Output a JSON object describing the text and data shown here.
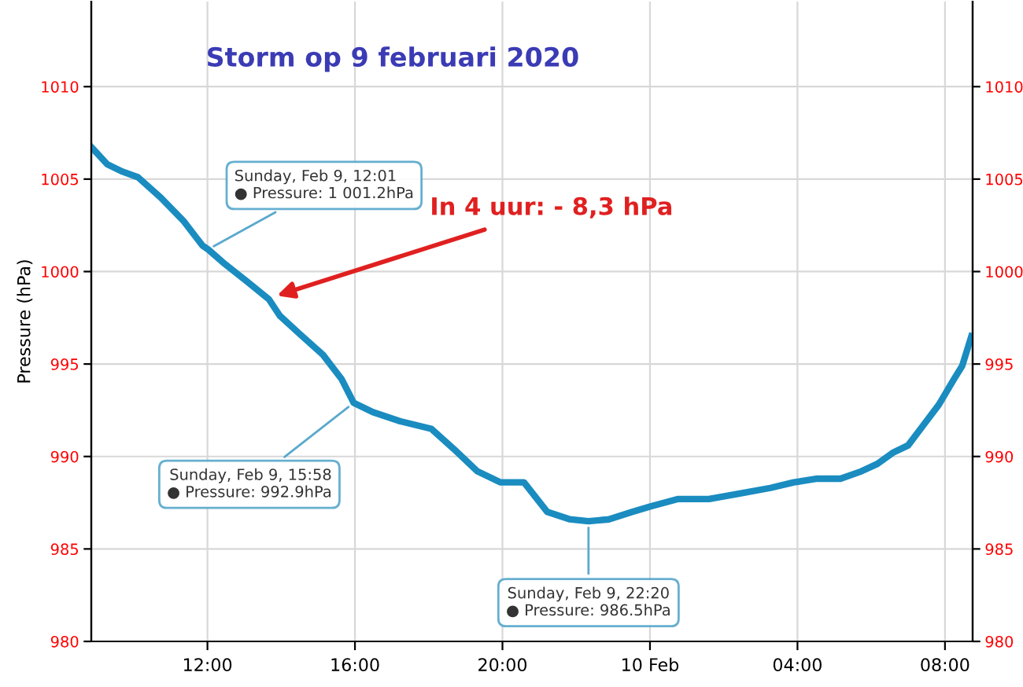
{
  "chart_data": {
    "type": "line",
    "title": "Storm op 9 februari 2020",
    "ylabel": "Pressure (hPa)",
    "x": [
      "2020-02-09T08:52",
      "2020-02-09T09:17",
      "2020-02-09T09:42",
      "2020-02-09T10:07",
      "2020-02-09T10:44",
      "2020-02-09T11:22",
      "2020-02-09T11:52",
      "2020-02-09T12:01",
      "2020-02-09T12:25",
      "2020-02-09T13:03",
      "2020-02-09T13:40",
      "2020-02-09T13:58",
      "2020-02-09T14:31",
      "2020-02-09T15:08",
      "2020-02-09T15:38",
      "2020-02-09T15:58",
      "2020-02-09T16:29",
      "2020-02-09T17:14",
      "2020-02-09T18:04",
      "2020-02-09T18:41",
      "2020-02-09T19:19",
      "2020-02-09T19:57",
      "2020-02-09T20:35",
      "2020-02-09T21:13",
      "2020-02-09T21:50",
      "2020-02-09T22:20",
      "2020-02-09T22:53",
      "2020-02-09T23:31",
      "2020-02-10T00:01",
      "2020-02-10T00:46",
      "2020-02-10T01:36",
      "2020-02-10T02:26",
      "2020-02-10T03:16",
      "2020-02-10T03:54",
      "2020-02-10T04:32",
      "2020-02-10T05:10",
      "2020-02-10T05:44",
      "2020-02-10T06:10",
      "2020-02-10T06:35",
      "2020-02-10T07:00",
      "2020-02-10T07:25",
      "2020-02-10T07:50",
      "2020-02-10T08:15",
      "2020-02-10T08:28",
      "2020-02-10T08:43"
    ],
    "series": [
      {
        "color": "#1a8cc0",
        "values": [
          1006.7,
          1005.8,
          1005.4,
          1005.1,
          1004.0,
          1002.7,
          1001.4,
          1001.2,
          1000.5,
          999.5,
          998.5,
          997.6,
          996.6,
          995.5,
          994.2,
          992.9,
          992.4,
          991.9,
          991.5,
          990.4,
          989.2,
          988.6,
          988.6,
          987.0,
          986.6,
          986.5,
          986.6,
          987.0,
          987.3,
          987.7,
          987.7,
          988.0,
          988.3,
          988.6,
          988.8,
          988.8,
          989.2,
          989.6,
          990.2,
          990.6,
          991.7,
          992.8,
          994.2,
          994.9,
          996.5
        ]
      }
    ],
    "xlim": [
      "2020-02-09T08:51",
      "2020-02-10T08:45"
    ],
    "xticks": [
      {
        "value": "2020-02-09T12:00",
        "label": "12:00"
      },
      {
        "value": "2020-02-09T16:00",
        "label": "16:00"
      },
      {
        "value": "2020-02-09T20:00",
        "label": "20:00"
      },
      {
        "value": "2020-02-10T00:00",
        "label": "10 Feb"
      },
      {
        "value": "2020-02-10T04:00",
        "label": "04:00"
      },
      {
        "value": "2020-02-10T08:00",
        "label": "08:00"
      }
    ],
    "ylim": [
      980,
      1014.6
    ],
    "yticks": [
      980,
      985,
      990,
      995,
      1000,
      1005,
      1010
    ],
    "y2lim": [
      980,
      1014.6
    ],
    "y2ticks": [
      980,
      985,
      990,
      995,
      1000,
      1005,
      1010
    ],
    "grid": true,
    "marker": "none",
    "line_style": "solid",
    "annotations": [
      {
        "text": "Sunday, Feb 9, 12:01\n● Pressure: 1 001.2hPa",
        "x": "2020-02-09T12:01",
        "y": 1001.2
      },
      {
        "text": "Sunday, Feb 9, 15:58\n● Pressure: 992.9hPa",
        "x": "2020-02-09T15:58",
        "y": 992.9
      },
      {
        "text": "Sunday, Feb 9, 22:20\n● Pressure: 986.5hPa",
        "x": "2020-02-09T22:20",
        "y": 986.5
      },
      {
        "text": "In 4 uur: - 8,3 hPa",
        "x": "2020-02-09T13:53",
        "y": 998.7
      }
    ]
  }
}
